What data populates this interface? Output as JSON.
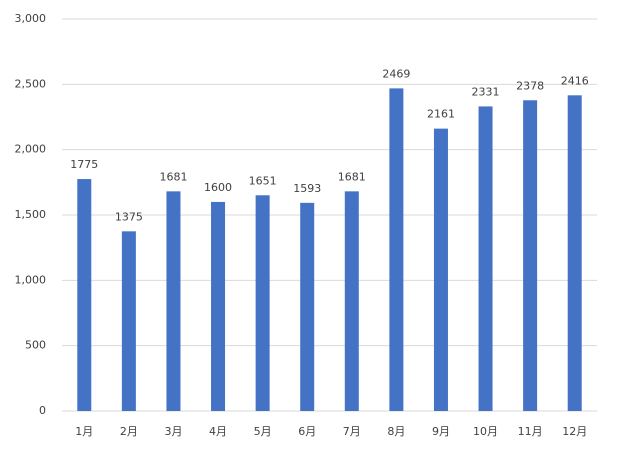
{
  "chart_data": {
    "type": "bar",
    "categories": [
      "1月",
      "2月",
      "3月",
      "4月",
      "5月",
      "6月",
      "7月",
      "8月",
      "9月",
      "10月",
      "11月",
      "12月"
    ],
    "values": [
      1775,
      1375,
      1681,
      1600,
      1651,
      1593,
      1681,
      2469,
      2161,
      2331,
      2378,
      2416
    ],
    "color": "#4472c4",
    "ylim": [
      0,
      3000
    ],
    "yticks": [
      0,
      500,
      {
        "value": 1000,
        "label": "1,000"
      },
      {
        "value": 1500,
        "label": "1,500"
      },
      {
        "value": 2000,
        "label": "2,000"
      },
      {
        "value": 2500,
        "label": "2,500"
      },
      {
        "value": 3000,
        "label": "3,000"
      }
    ],
    "grid": true,
    "data_labels": true
  }
}
